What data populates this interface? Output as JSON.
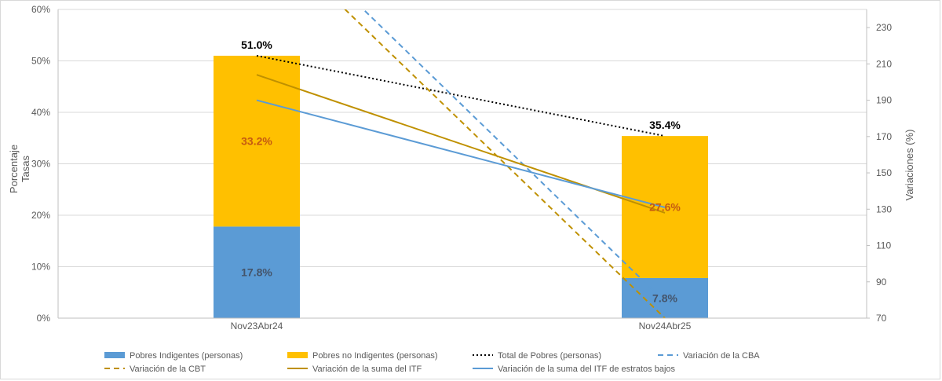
{
  "chart_data": {
    "type": "bar",
    "stacked": true,
    "categories": [
      "Nov23Abr24",
      "Nov24Abr25"
    ],
    "y_left": {
      "label_lines": [
        "Porcentaje",
        "Tasas"
      ],
      "min": 0,
      "max": 60,
      "step": 10,
      "tick_suffix": "%"
    },
    "y_right": {
      "label": "Variaciones (%)",
      "min": 70,
      "max": 240,
      "ticks": [
        70,
        90,
        110,
        130,
        150,
        170,
        190,
        210,
        230
      ]
    },
    "bar_series": [
      {
        "name": "Pobres Indigentes (personas)",
        "values": [
          17.8,
          7.8
        ],
        "labels": [
          "17.8%",
          "7.8%"
        ],
        "color": "#5b9bd5",
        "label_color": "#44546a"
      },
      {
        "name": "Pobres no Indigentes (personas)",
        "values": [
          33.2,
          27.6
        ],
        "labels": [
          "33.2%",
          "27.6%"
        ],
        "color": "#ffc000",
        "label_color": "#c55a11"
      }
    ],
    "line_series": [
      {
        "name": "Total de Pobres (personas)",
        "axis": "left",
        "values": [
          51.0,
          35.4
        ],
        "labels": [
          "51.0%",
          "35.4%"
        ],
        "color": "#000000",
        "style": "dotted"
      },
      {
        "name": "Variación de la CBA",
        "axis": "right",
        "values": [
          297,
          79
        ],
        "color": "#5b9bd5",
        "style": "dashed"
      },
      {
        "name": "Variación de la CBT",
        "axis": "right",
        "values": [
          287,
          70
        ],
        "color": "#bf9000",
        "style": "dashed"
      },
      {
        "name": "Variación de la suma del ITF",
        "axis": "right",
        "values": [
          204,
          128
        ],
        "color": "#bf9000",
        "style": "solid"
      },
      {
        "name": "Variación de la suma del ITF de estratos bajos",
        "axis": "right",
        "values": [
          190,
          131
        ],
        "color": "#5b9bd5",
        "style": "solid"
      }
    ],
    "legend_position": "bottom",
    "grid": "horizontal"
  }
}
